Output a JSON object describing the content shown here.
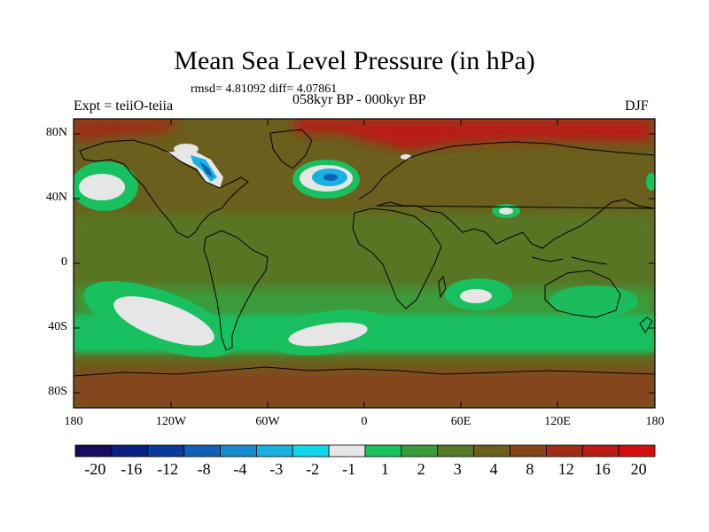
{
  "title": "Mean Sea Level Pressure (in hPa)",
  "stats": "rmsd= 4.81092 diff= 4.07861",
  "period": "058kyr BP - 000kyr BP",
  "experiment": "Expt = teiiO-teiia",
  "season": "DJF",
  "map": {
    "lat_labels": [
      "80N",
      "40N",
      "0",
      "40S",
      "80S"
    ],
    "lon_labels": [
      "180",
      "120W",
      "60W",
      "0",
      "60E",
      "120E",
      "180"
    ]
  },
  "colorbar": {
    "labels": [
      "-20",
      "-16",
      "-12",
      "-8",
      "-4",
      "-3",
      "-2",
      "-1",
      "1",
      "2",
      "3",
      "4",
      "8",
      "12",
      "16",
      "20"
    ],
    "colors": [
      "#1a0a5e",
      "#0a1f82",
      "#0a3a9c",
      "#1060b8",
      "#1a8ad0",
      "#19b2e0",
      "#10d8e8",
      "#e6e6e6",
      "#18c060",
      "#3a9b3a",
      "#547a26",
      "#6a5f1c",
      "#85441a",
      "#9e2f16",
      "#b81c14",
      "#d01010"
    ]
  }
}
